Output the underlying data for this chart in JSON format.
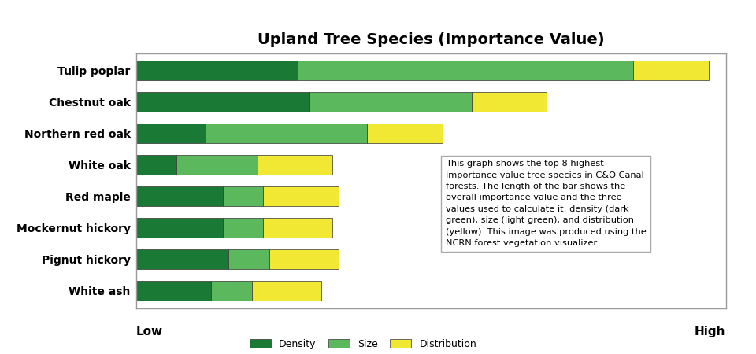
{
  "title": "Upland Tree Species (Importance Value)",
  "species": [
    "Tulip poplar",
    "Chestnut oak",
    "Northern red oak",
    "White oak",
    "Red maple",
    "Mockernut hickory",
    "Pignut hickory",
    "White ash"
  ],
  "density": [
    28,
    30,
    12,
    7,
    15,
    15,
    16,
    13
  ],
  "size": [
    58,
    28,
    28,
    14,
    7,
    7,
    7,
    7
  ],
  "distribution": [
    13,
    13,
    13,
    13,
    13,
    12,
    12,
    12
  ],
  "color_density": "#1a7a35",
  "color_size": "#5cb85c",
  "color_distribution": "#f0e832",
  "annotation_text": "This graph shows the top 8 highest\nimportance value tree species in C&O Canal\nforests. The length of the bar shows the\noverall importance value and the three\nvalues used to calculate it: density (dark\ngreen), size (light green), and distribution\n(yellow). This image was produced using the\nNCRN forest vegetation visualizer.",
  "xlabel_low": "Low",
  "xlabel_high": "High",
  "legend_density": "Density",
  "legend_size": "Size",
  "legend_distribution": "Distribution",
  "xlim_max": 102
}
